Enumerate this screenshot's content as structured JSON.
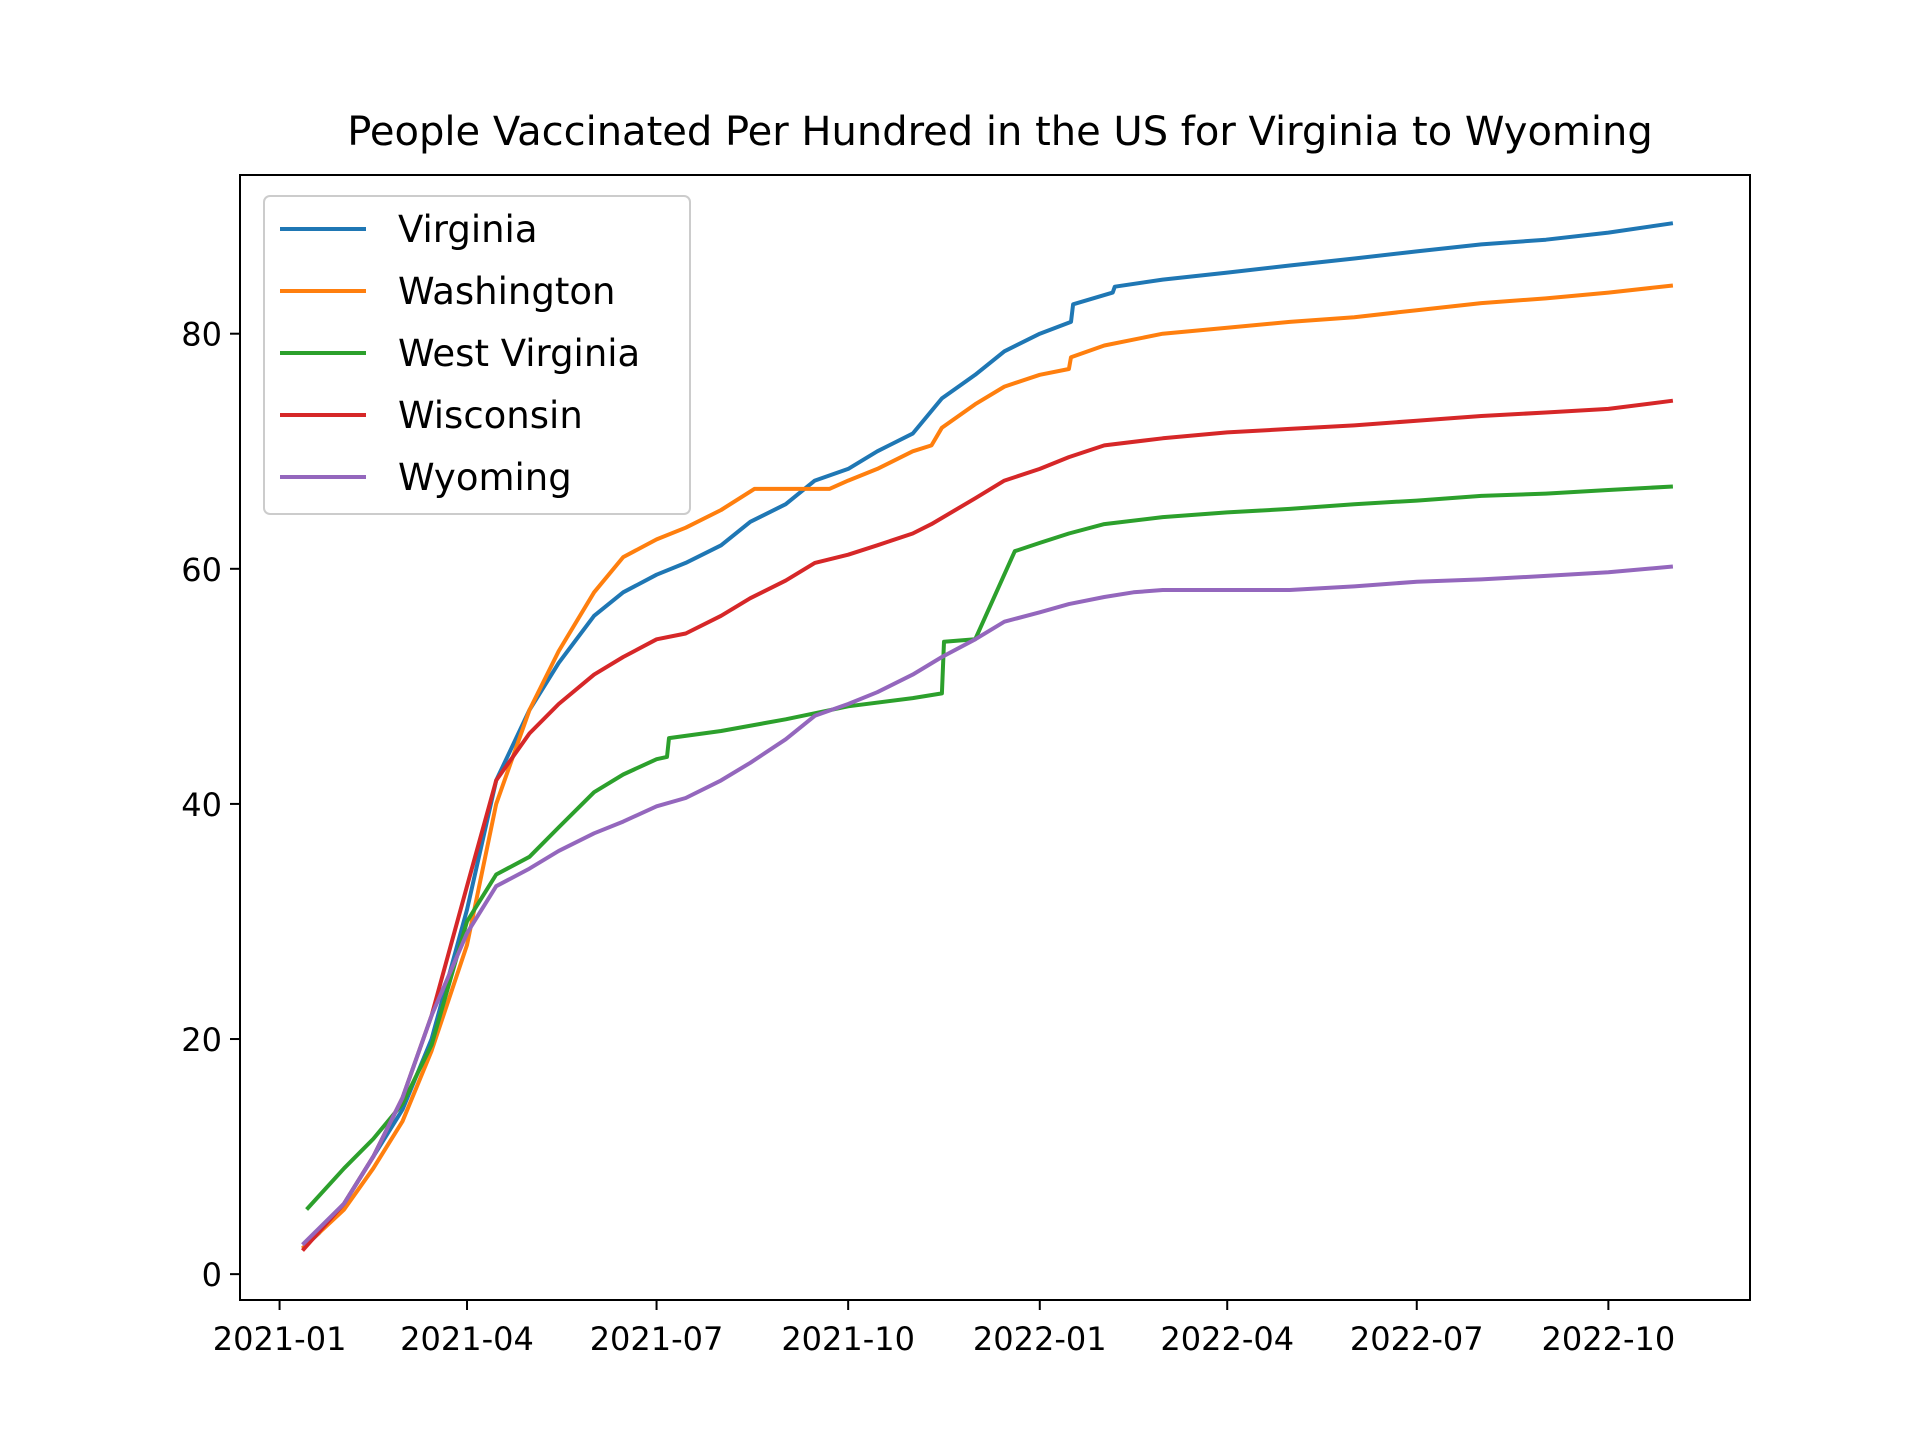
{
  "chart_data": {
    "type": "line",
    "title": "People Vaccinated Per Hundred in the US for Virginia to Wyoming",
    "xlabel": "",
    "ylabel": "",
    "x_ticks": [
      "2021-01",
      "2021-04",
      "2021-07",
      "2021-10",
      "2022-01",
      "2022-04",
      "2022-07",
      "2022-10"
    ],
    "y_ticks": [
      0,
      20,
      40,
      60,
      80
    ],
    "xlim": [
      "2020-12-13",
      "2022-12-08"
    ],
    "ylim": [
      -2.2,
      93.5
    ],
    "grid": false,
    "legend_position": "upper-left",
    "series": [
      {
        "name": "Virginia",
        "color": "#1f77b4",
        "points": [
          [
            "2021-01-12",
            2.2
          ],
          [
            "2021-01-20",
            3.5
          ],
          [
            "2021-02-01",
            6
          ],
          [
            "2021-02-15",
            10
          ],
          [
            "2021-03-01",
            14
          ],
          [
            "2021-03-15",
            20
          ],
          [
            "2021-04-01",
            31
          ],
          [
            "2021-04-15",
            42
          ],
          [
            "2021-05-01",
            48
          ],
          [
            "2021-05-15",
            52
          ],
          [
            "2021-06-01",
            56
          ],
          [
            "2021-06-15",
            58
          ],
          [
            "2021-07-01",
            59.5
          ],
          [
            "2021-07-15",
            60.5
          ],
          [
            "2021-08-01",
            62
          ],
          [
            "2021-08-15",
            64
          ],
          [
            "2021-09-01",
            65.5
          ],
          [
            "2021-09-15",
            67.5
          ],
          [
            "2021-10-01",
            68.5
          ],
          [
            "2021-10-15",
            70
          ],
          [
            "2021-11-01",
            71.5
          ],
          [
            "2021-11-15",
            74.5
          ],
          [
            "2021-12-01",
            76.5
          ],
          [
            "2021-12-15",
            78.5
          ],
          [
            "2022-01-01",
            80
          ],
          [
            "2022-01-16",
            81
          ],
          [
            "2022-01-17",
            82.5
          ],
          [
            "2022-02-05",
            83.5
          ],
          [
            "2022-02-06",
            84
          ],
          [
            "2022-03-01",
            84.6
          ],
          [
            "2022-04-01",
            85.2
          ],
          [
            "2022-05-01",
            85.8
          ],
          [
            "2022-06-01",
            86.4
          ],
          [
            "2022-07-01",
            87
          ],
          [
            "2022-08-01",
            87.6
          ],
          [
            "2022-09-01",
            88
          ],
          [
            "2022-10-01",
            88.6
          ],
          [
            "2022-11-01",
            89.4
          ]
        ]
      },
      {
        "name": "Washington",
        "color": "#ff7f0e",
        "points": [
          [
            "2021-01-12",
            2.2
          ],
          [
            "2021-02-01",
            5.5
          ],
          [
            "2021-02-15",
            9
          ],
          [
            "2021-03-01",
            13
          ],
          [
            "2021-03-15",
            19
          ],
          [
            "2021-04-01",
            28
          ],
          [
            "2021-04-15",
            40
          ],
          [
            "2021-05-01",
            48
          ],
          [
            "2021-05-15",
            53
          ],
          [
            "2021-06-01",
            58
          ],
          [
            "2021-06-15",
            61
          ],
          [
            "2021-07-01",
            62.5
          ],
          [
            "2021-07-15",
            63.5
          ],
          [
            "2021-08-01",
            65
          ],
          [
            "2021-08-17",
            66.8
          ],
          [
            "2021-09-01",
            66.8
          ],
          [
            "2021-09-22",
            66.8
          ],
          [
            "2021-10-01",
            67.5
          ],
          [
            "2021-10-15",
            68.5
          ],
          [
            "2021-11-01",
            70
          ],
          [
            "2021-11-10",
            70.5
          ],
          [
            "2021-11-15",
            72
          ],
          [
            "2021-12-01",
            74
          ],
          [
            "2021-12-15",
            75.5
          ],
          [
            "2022-01-01",
            76.5
          ],
          [
            "2022-01-15",
            77
          ],
          [
            "2022-01-16",
            78
          ],
          [
            "2022-02-01",
            79
          ],
          [
            "2022-03-01",
            80
          ],
          [
            "2022-04-01",
            80.5
          ],
          [
            "2022-05-01",
            81
          ],
          [
            "2022-06-01",
            81.4
          ],
          [
            "2022-07-01",
            82
          ],
          [
            "2022-08-01",
            82.6
          ],
          [
            "2022-09-01",
            83
          ],
          [
            "2022-10-01",
            83.5
          ],
          [
            "2022-11-01",
            84.1
          ]
        ]
      },
      {
        "name": "West Virginia",
        "color": "#2ca02c",
        "points": [
          [
            "2021-01-14",
            5.5
          ],
          [
            "2021-02-01",
            9
          ],
          [
            "2021-02-15",
            11.5
          ],
          [
            "2021-03-01",
            14.5
          ],
          [
            "2021-03-15",
            19.5
          ],
          [
            "2021-04-01",
            30
          ],
          [
            "2021-04-15",
            34
          ],
          [
            "2021-05-01",
            35.5
          ],
          [
            "2021-05-15",
            38
          ],
          [
            "2021-06-01",
            41
          ],
          [
            "2021-06-15",
            42.5
          ],
          [
            "2021-07-01",
            43.8
          ],
          [
            "2021-07-06",
            44
          ],
          [
            "2021-07-07",
            45.6
          ],
          [
            "2021-08-01",
            46.2
          ],
          [
            "2021-09-01",
            47.2
          ],
          [
            "2021-10-01",
            48.3
          ],
          [
            "2021-11-01",
            49
          ],
          [
            "2021-11-15",
            49.4
          ],
          [
            "2021-11-16",
            53.8
          ],
          [
            "2021-12-01",
            54
          ],
          [
            "2021-12-20",
            61.5
          ],
          [
            "2022-01-01",
            62.2
          ],
          [
            "2022-01-15",
            63
          ],
          [
            "2022-02-01",
            63.8
          ],
          [
            "2022-03-01",
            64.4
          ],
          [
            "2022-04-01",
            64.8
          ],
          [
            "2022-05-01",
            65.1
          ],
          [
            "2022-06-01",
            65.5
          ],
          [
            "2022-07-01",
            65.8
          ],
          [
            "2022-08-01",
            66.2
          ],
          [
            "2022-09-01",
            66.4
          ],
          [
            "2022-10-01",
            66.7
          ],
          [
            "2022-11-01",
            67
          ]
        ]
      },
      {
        "name": "Wisconsin",
        "color": "#d62728",
        "points": [
          [
            "2021-01-12",
            2
          ],
          [
            "2021-02-01",
            6
          ],
          [
            "2021-02-15",
            10
          ],
          [
            "2021-03-01",
            15
          ],
          [
            "2021-03-15",
            22
          ],
          [
            "2021-04-01",
            33
          ],
          [
            "2021-04-15",
            42
          ],
          [
            "2021-05-01",
            46
          ],
          [
            "2021-05-15",
            48.5
          ],
          [
            "2021-06-01",
            51
          ],
          [
            "2021-06-15",
            52.5
          ],
          [
            "2021-07-01",
            54
          ],
          [
            "2021-07-15",
            54.5
          ],
          [
            "2021-08-01",
            56
          ],
          [
            "2021-08-15",
            57.5
          ],
          [
            "2021-09-01",
            59
          ],
          [
            "2021-09-15",
            60.5
          ],
          [
            "2021-10-01",
            61.2
          ],
          [
            "2021-10-15",
            62
          ],
          [
            "2021-11-01",
            63
          ],
          [
            "2021-11-10",
            63.8
          ],
          [
            "2021-12-01",
            66
          ],
          [
            "2021-12-15",
            67.5
          ],
          [
            "2022-01-01",
            68.5
          ],
          [
            "2022-01-15",
            69.5
          ],
          [
            "2022-02-01",
            70.5
          ],
          [
            "2022-03-01",
            71.1
          ],
          [
            "2022-04-01",
            71.6
          ],
          [
            "2022-05-01",
            71.9
          ],
          [
            "2022-06-01",
            72.2
          ],
          [
            "2022-07-01",
            72.6
          ],
          [
            "2022-08-01",
            73
          ],
          [
            "2022-09-01",
            73.3
          ],
          [
            "2022-10-01",
            73.6
          ],
          [
            "2022-11-01",
            74.3
          ]
        ]
      },
      {
        "name": "Wyoming",
        "color": "#9467bd",
        "points": [
          [
            "2021-01-12",
            2.5
          ],
          [
            "2021-02-01",
            6
          ],
          [
            "2021-02-15",
            10
          ],
          [
            "2021-03-01",
            15
          ],
          [
            "2021-03-15",
            22
          ],
          [
            "2021-04-01",
            29
          ],
          [
            "2021-04-15",
            33
          ],
          [
            "2021-05-01",
            34.5
          ],
          [
            "2021-05-15",
            36
          ],
          [
            "2021-06-01",
            37.5
          ],
          [
            "2021-06-15",
            38.5
          ],
          [
            "2021-07-01",
            39.8
          ],
          [
            "2021-07-15",
            40.5
          ],
          [
            "2021-08-01",
            42
          ],
          [
            "2021-08-15",
            43.5
          ],
          [
            "2021-09-01",
            45.5
          ],
          [
            "2021-09-15",
            47.5
          ],
          [
            "2021-10-01",
            48.5
          ],
          [
            "2021-10-15",
            49.5
          ],
          [
            "2021-11-01",
            51
          ],
          [
            "2021-11-15",
            52.5
          ],
          [
            "2021-12-01",
            54
          ],
          [
            "2021-12-15",
            55.5
          ],
          [
            "2022-01-01",
            56.3
          ],
          [
            "2022-01-15",
            57
          ],
          [
            "2022-02-01",
            57.6
          ],
          [
            "2022-02-15",
            58
          ],
          [
            "2022-03-01",
            58.2
          ],
          [
            "2022-04-01",
            58.2
          ],
          [
            "2022-05-01",
            58.2
          ],
          [
            "2022-06-01",
            58.5
          ],
          [
            "2022-07-01",
            58.9
          ],
          [
            "2022-08-01",
            59.1
          ],
          [
            "2022-09-01",
            59.4
          ],
          [
            "2022-10-01",
            59.7
          ],
          [
            "2022-11-01",
            60.2
          ]
        ]
      }
    ]
  }
}
